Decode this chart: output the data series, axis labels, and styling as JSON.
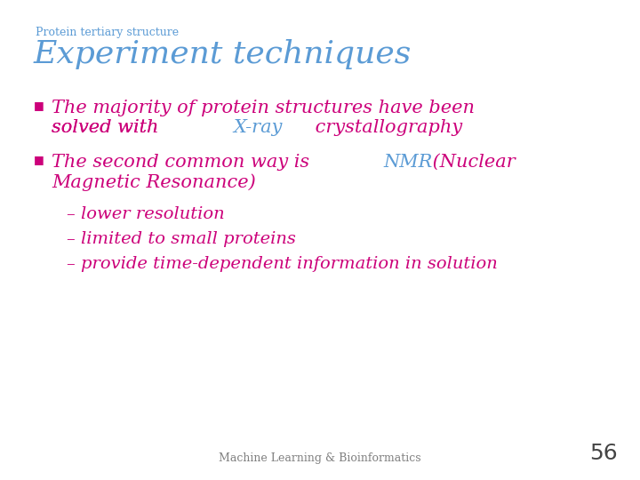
{
  "background_color": "#ffffff",
  "supertitle": "Protein tertiary structure",
  "supertitle_color": "#5b9bd5",
  "supertitle_fontsize": 9,
  "title": "Experiment techniques",
  "title_color": "#5b9bd5",
  "title_fontsize": 26,
  "bullet_color": "#cc007a",
  "bullet_marker": "■",
  "bullet1_line1": "The majority of protein structures have been",
  "bullet1_line2_part1": "solved with ",
  "bullet1_line2_xray": "X-ray",
  "bullet1_line2_part2": " crystallography",
  "bullet2_line1_part1": "The second common way is ",
  "bullet2_line1_nmr": "NMR",
  "bullet2_line1_part2": " (Nuclear",
  "bullet2_line2": "Magnetic Resonance)",
  "sub_bullet1": "– lower resolution",
  "sub_bullet2": "– limited to small proteins",
  "sub_bullet3": "– provide time-dependent information in solution",
  "main_text_color": "#cc007a",
  "blue_color": "#5b9bd5",
  "sub_text_color": "#cc007a",
  "footer_text": "Machine Learning & Bioinformatics",
  "footer_color": "#808080",
  "footer_fontsize": 9,
  "page_number": "56",
  "page_number_color": "#444444",
  "page_number_fontsize": 18,
  "main_fontsize": 15,
  "sub_fontsize": 14,
  "bullet_fontsize": 9
}
